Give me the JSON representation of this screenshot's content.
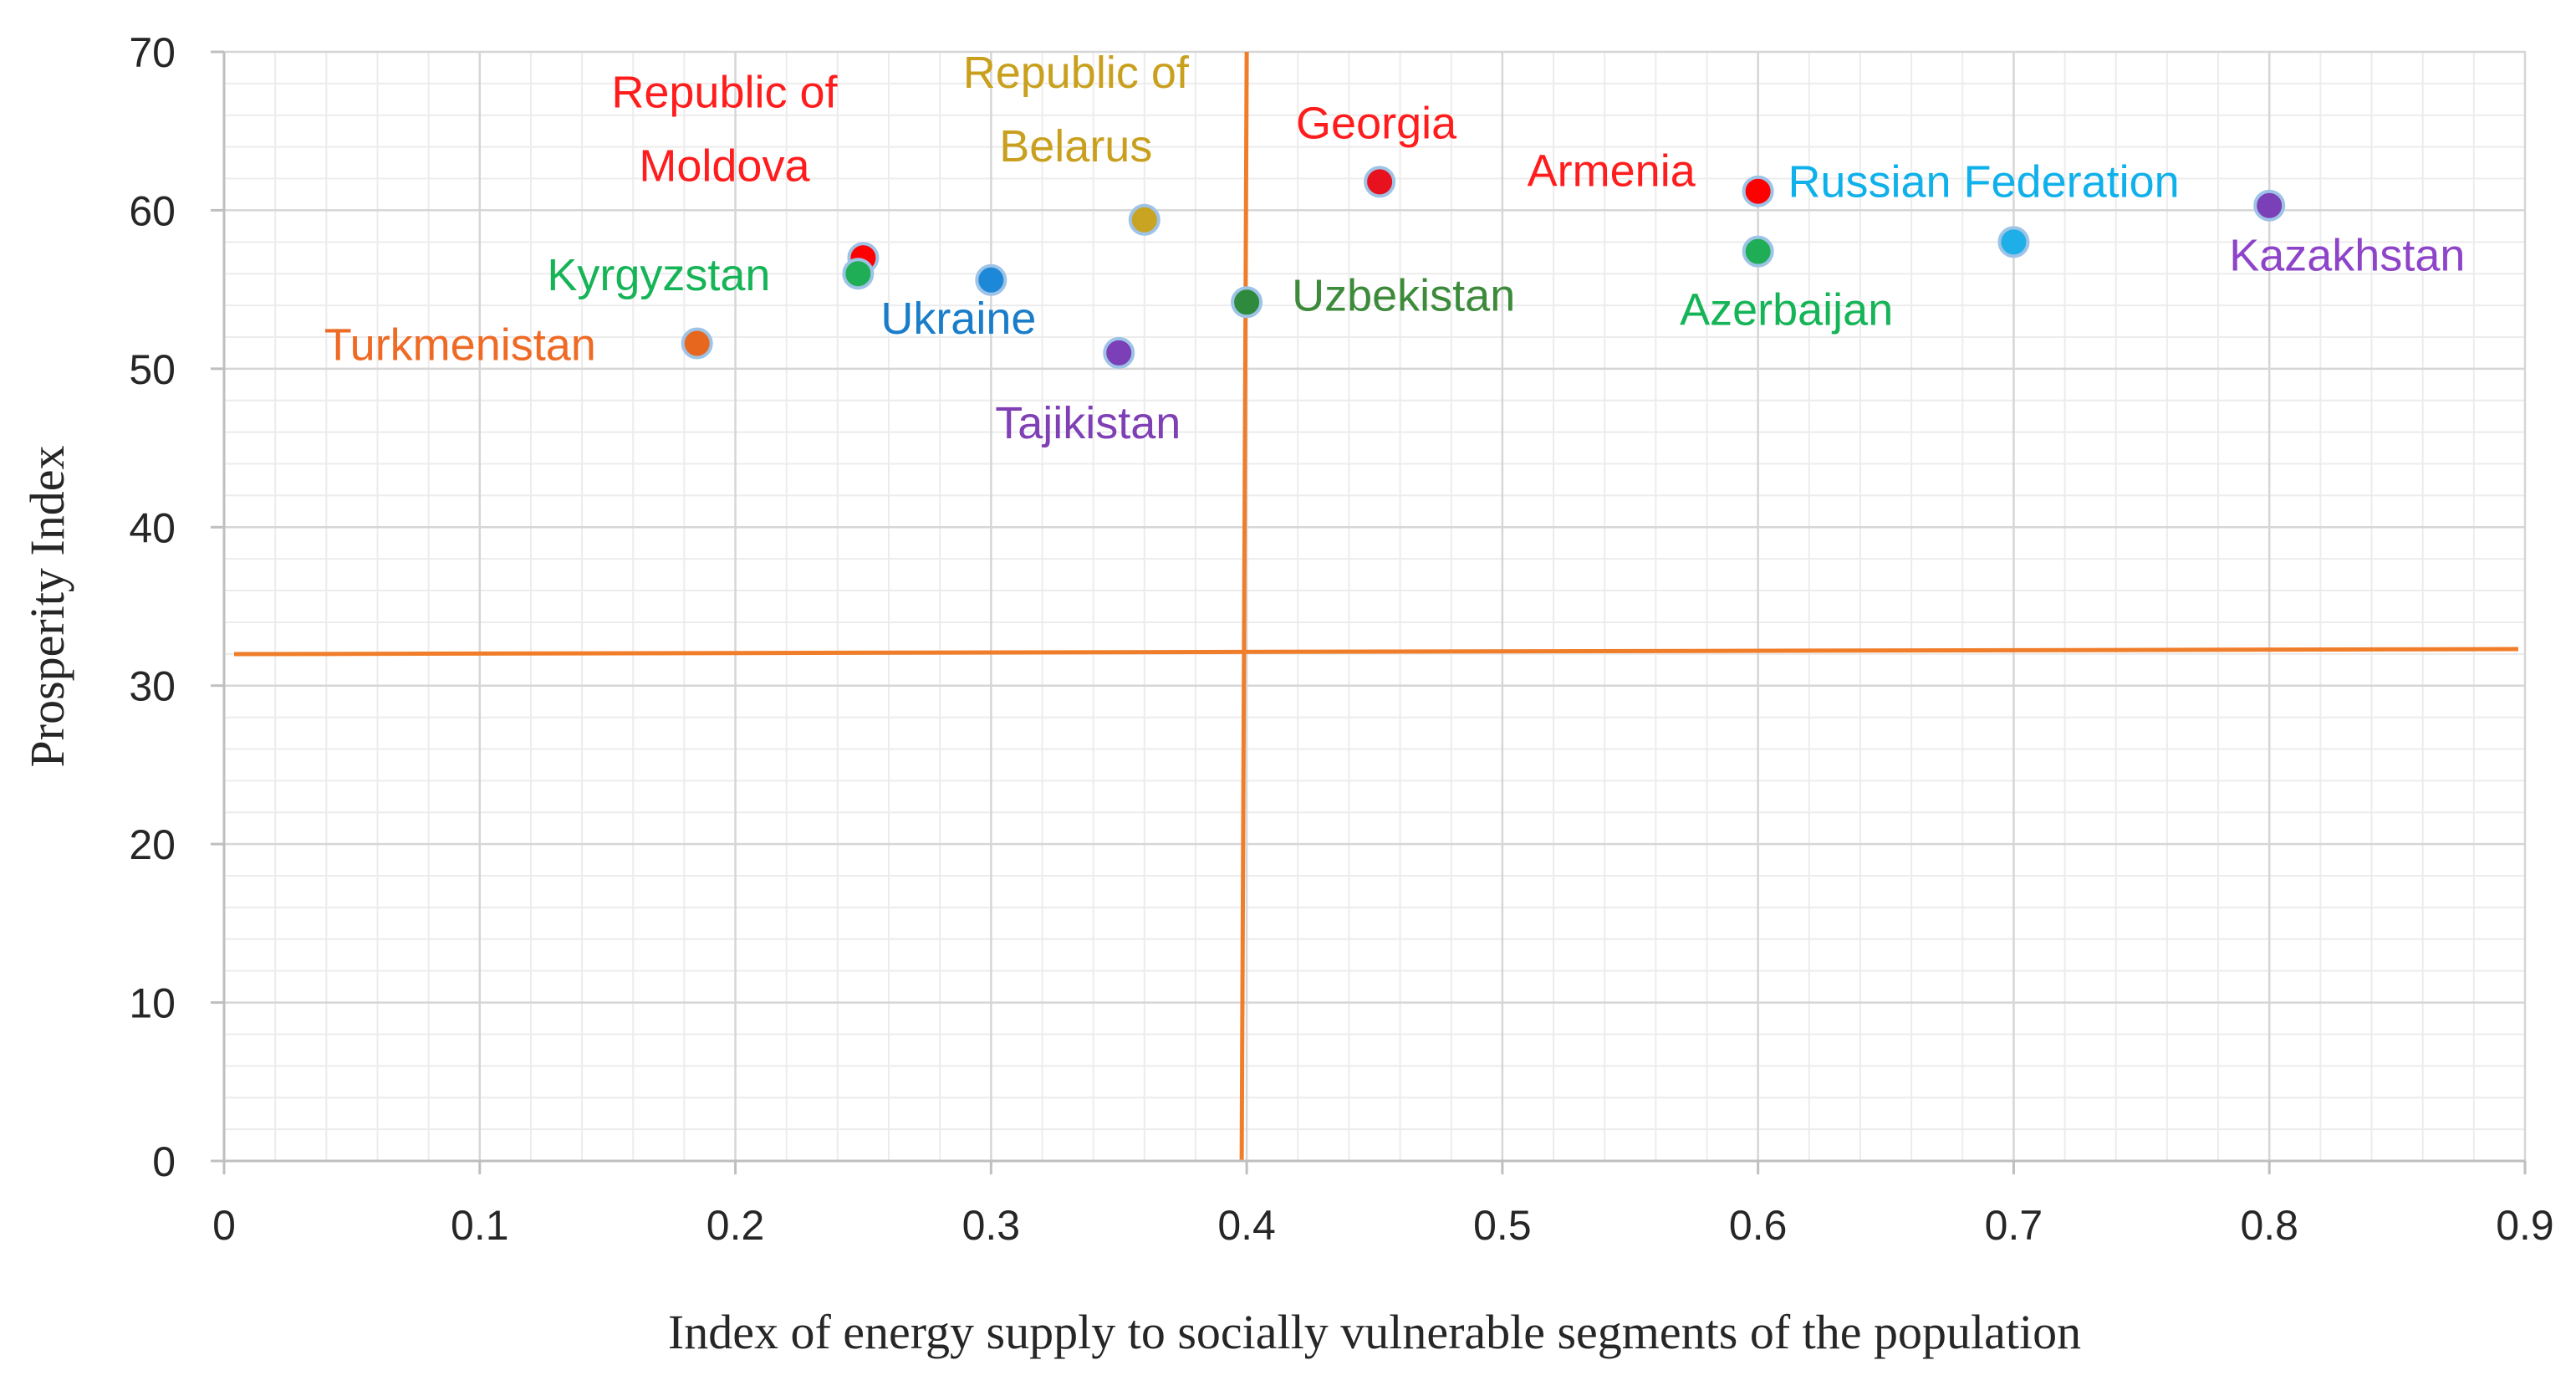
{
  "chart_data": {
    "type": "scatter",
    "title": "",
    "xlabel": "Index of energy supply to socially vulnerable segments of the population",
    "ylabel": "Prosperity Index",
    "xlim": [
      0,
      0.9
    ],
    "ylim": [
      0,
      70
    ],
    "x_ticks": [
      {
        "value": 0,
        "label": "0"
      },
      {
        "value": 0.1,
        "label": "0.1"
      },
      {
        "value": 0.2,
        "label": "0.2"
      },
      {
        "value": 0.3,
        "label": "0.3"
      },
      {
        "value": 0.4,
        "label": "0.4"
      },
      {
        "value": 0.5,
        "label": "0.5"
      },
      {
        "value": 0.6,
        "label": "0.6"
      },
      {
        "value": 0.7,
        "label": "0.7"
      },
      {
        "value": 0.8,
        "label": "0.8"
      },
      {
        "value": 0.9,
        "label": "0.9"
      }
    ],
    "y_ticks": [
      {
        "value": 0,
        "label": "0"
      },
      {
        "value": 10,
        "label": "10"
      },
      {
        "value": 20,
        "label": "20"
      },
      {
        "value": 30,
        "label": "30"
      },
      {
        "value": 40,
        "label": "40"
      },
      {
        "value": 50,
        "label": "50"
      },
      {
        "value": 60,
        "label": "60"
      },
      {
        "value": 70,
        "label": "70"
      }
    ],
    "grid": true,
    "reference_lines": [
      {
        "orientation": "vertical",
        "value": 0.4,
        "color": "#F07D2A"
      },
      {
        "orientation": "horizontal",
        "value": 32.2,
        "color": "#F07D2A"
      }
    ],
    "points": [
      {
        "name": "Republic of Moldova",
        "x": 0.25,
        "y": 57.0,
        "color": "#FF0000",
        "label_lines": [
          "Republic of",
          "Moldova"
        ],
        "label_color": "#FF1C1C"
      },
      {
        "name": "Kyrgyzstan",
        "x": 0.248,
        "y": 56.0,
        "color": "#1FAE55",
        "label_lines": [
          "Kyrgyzstan"
        ],
        "label_color": "#14B457"
      },
      {
        "name": "Turkmenistan",
        "x": 0.185,
        "y": 51.6,
        "color": "#E8671E",
        "label_lines": [
          "Turkmenistan"
        ],
        "label_color": "#EE6A25"
      },
      {
        "name": "Ukraine",
        "x": 0.3,
        "y": 55.6,
        "color": "#1E88D8",
        "label_lines": [
          "Ukraine"
        ],
        "label_color": "#1A7DC9"
      },
      {
        "name": "Republic of Belarus",
        "x": 0.36,
        "y": 59.4,
        "color": "#C9A322",
        "label_lines": [
          "Republic of",
          "Belarus"
        ],
        "label_color": "#C9A01E"
      },
      {
        "name": "Tajikistan",
        "x": 0.35,
        "y": 51.0,
        "color": "#7B3FB8",
        "label_lines": [
          "Tajikistan"
        ],
        "label_color": "#8040B5"
      },
      {
        "name": "Uzbekistan",
        "x": 0.4,
        "y": 54.2,
        "color": "#2E8B3E",
        "label_lines": [
          "Uzbekistan"
        ],
        "label_color": "#3C8A3A"
      },
      {
        "name": "Georgia",
        "x": 0.452,
        "y": 61.8,
        "color": "#E8121E",
        "label_lines": [
          "Georgia"
        ],
        "label_color": "#FF1C1C"
      },
      {
        "name": "Armenia",
        "x": 0.6,
        "y": 61.2,
        "color": "#FF0000",
        "label_lines": [
          "Armenia"
        ],
        "label_color": "#FF1C1C"
      },
      {
        "name": "Azerbaijan",
        "x": 0.6,
        "y": 57.4,
        "color": "#1FAE55",
        "label_lines": [
          "Azerbaijan"
        ],
        "label_color": "#14B457"
      },
      {
        "name": "Russian Federation",
        "x": 0.7,
        "y": 58.0,
        "color": "#1EAFE8",
        "label_lines": [
          "Russian Federation"
        ],
        "label_color": "#10B0EA"
      },
      {
        "name": "Kazakhstan",
        "x": 0.8,
        "y": 60.3,
        "color": "#7B3FB8",
        "label_lines": [
          "Kazakhstan"
        ],
        "label_color": "#8E44C8"
      }
    ]
  }
}
